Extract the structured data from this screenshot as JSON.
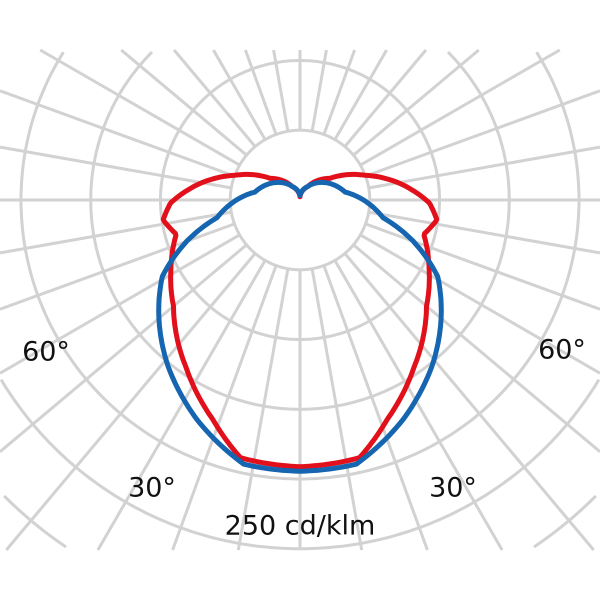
{
  "chart_data": {
    "type": "polar",
    "unit_label": "250 cd/klm",
    "angle_labels": {
      "left_60": "60°",
      "right_60": "60°",
      "left_30": "30°",
      "right_30": "30°"
    },
    "ring_step": 62.5,
    "angular_step_deg": 10,
    "grid": true,
    "grid_color": "#d2d2d2",
    "series": [
      {
        "color": "#e2101b",
        "angles_deg": [
          0,
          13,
          21.5,
          34,
          50,
          62,
          74.5,
          81.7,
          88.7,
          98.9,
          111,
          126,
          150,
          180
        ],
        "values": [
          239,
          237,
          212,
          182,
          148,
          131,
          115,
          124,
          116,
          92,
          62,
          33,
          14,
          3
        ]
      },
      {
        "color": "#1565b0",
        "angles_deg": [
          0,
          12,
          24.8,
          39,
          50,
          61,
          70,
          78,
          100,
          129,
          150,
          180
        ],
        "values": [
          243,
          242,
          218,
          189,
          165,
          141,
          108,
          76,
          41,
          25,
          14,
          4
        ]
      }
    ]
  }
}
